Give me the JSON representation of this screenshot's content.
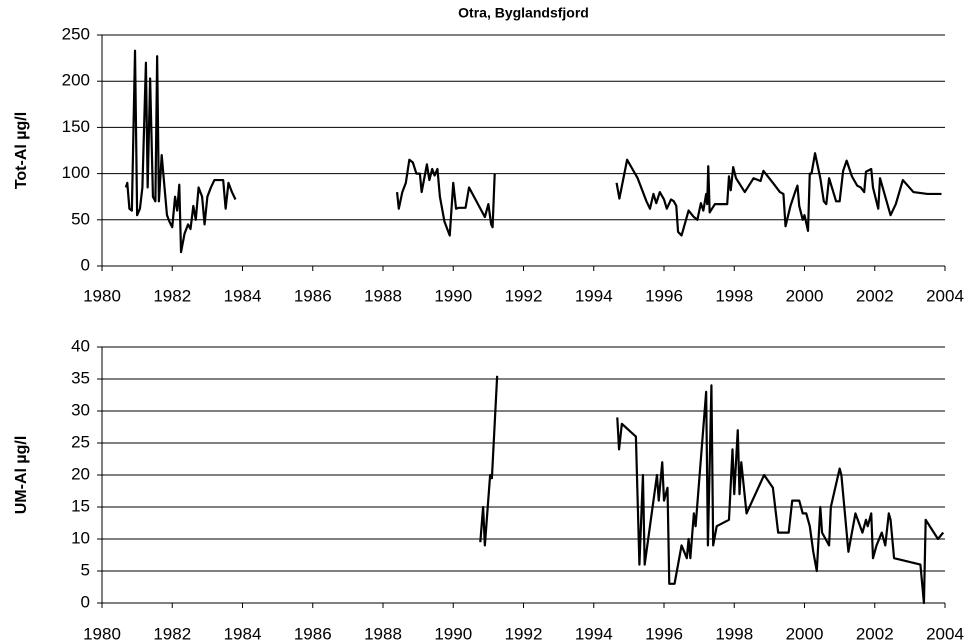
{
  "chart_data": [
    {
      "type": "line",
      "title": "Otra, Byglandsfjord",
      "y_label": "Tot-Al µg/l",
      "x": [
        1980.68,
        1980.72,
        1980.78,
        1980.85,
        1980.94,
        1981.0,
        1981.08,
        1981.15,
        1981.25,
        1981.3,
        1981.37,
        1981.45,
        1981.52,
        1981.57,
        1981.62,
        1981.7,
        1981.78,
        1981.85,
        1981.92,
        1982.0,
        1982.08,
        1982.14,
        1982.2,
        1982.25,
        1982.35,
        1982.45,
        1982.52,
        1982.6,
        1982.67,
        1982.75,
        1982.85,
        1982.92,
        1983.0,
        1983.1,
        1983.2,
        1983.35,
        1983.45,
        1983.52,
        1983.6,
        1983.7,
        1983.8,
        null,
        1988.4,
        1988.45,
        1988.55,
        1988.65,
        1988.75,
        1988.85,
        1988.95,
        1989.05,
        1989.1,
        1989.25,
        1989.32,
        1989.4,
        1989.47,
        1989.55,
        1989.62,
        1989.75,
        1989.9,
        1990.0,
        1990.08,
        1990.15,
        1990.35,
        1990.45,
        1990.9,
        1991.0,
        1991.08,
        1991.12,
        1991.18,
        null,
        1994.65,
        1994.73,
        1994.95,
        1995.25,
        1995.5,
        1995.6,
        1995.7,
        1995.78,
        1995.88,
        1996.0,
        1996.08,
        1996.2,
        1996.28,
        1996.35,
        1996.4,
        1996.5,
        1996.7,
        1996.85,
        1996.95,
        1997.05,
        1997.12,
        1997.2,
        1997.23,
        1997.26,
        1997.3,
        1997.45,
        1997.8,
        1997.85,
        1997.9,
        1997.97,
        1998.05,
        1998.3,
        1998.55,
        1998.75,
        1998.83,
        1999.1,
        1999.3,
        1999.4,
        1999.46,
        1999.6,
        1999.75,
        1999.8,
        1999.85,
        1999.95,
        2000.0,
        2000.1,
        2000.15,
        2000.2,
        2000.3,
        2000.45,
        2000.55,
        2000.62,
        2000.7,
        2000.9,
        2001.0,
        2001.1,
        2001.2,
        2001.35,
        2001.5,
        2001.6,
        2001.7,
        2001.75,
        2001.9,
        2001.95,
        2002.1,
        2002.15,
        2002.45,
        2002.6,
        2002.8,
        2003.1,
        2003.5,
        2003.9
      ],
      "values": [
        85,
        90,
        62,
        60,
        233,
        55,
        62,
        85,
        220,
        85,
        203,
        75,
        70,
        227,
        70,
        120,
        85,
        55,
        48,
        42,
        75,
        60,
        88,
        15,
        35,
        45,
        40,
        65,
        50,
        85,
        75,
        45,
        75,
        85,
        93,
        93,
        93,
        62,
        90,
        80,
        72,
        null,
        80,
        62,
        80,
        90,
        115,
        112,
        100,
        100,
        80,
        110,
        93,
        105,
        98,
        105,
        75,
        48,
        33,
        90,
        62,
        63,
        63,
        85,
        53,
        67,
        45,
        42,
        100,
        null,
        90,
        73,
        115,
        95,
        70,
        62,
        78,
        68,
        80,
        72,
        62,
        72,
        70,
        65,
        37,
        33,
        60,
        53,
        50,
        68,
        60,
        78,
        67,
        108,
        58,
        67,
        67,
        97,
        82,
        107,
        95,
        80,
        95,
        92,
        103,
        90,
        80,
        78,
        43,
        65,
        82,
        87,
        65,
        50,
        55,
        38,
        100,
        100,
        122,
        95,
        70,
        67,
        95,
        70,
        70,
        103,
        114,
        97,
        87,
        85,
        80,
        102,
        105,
        85,
        62,
        95,
        55,
        67,
        93,
        80,
        78,
        78
      ],
      "color": "#000000",
      "xlim": [
        1980,
        2004
      ],
      "xticks": [
        1980,
        1982,
        1984,
        1986,
        1988,
        1990,
        1992,
        1994,
        1996,
        1998,
        2000,
        2002,
        2004
      ],
      "ylim": [
        0,
        250
      ],
      "yticks": [
        0,
        50,
        100,
        150,
        200,
        250
      ],
      "grid": true
    },
    {
      "type": "line",
      "y_label": "UM-Al µg/l",
      "x": [
        1990.77,
        1990.85,
        1990.9,
        1991.05,
        1991.1,
        1991.25,
        null,
        1994.67,
        1994.72,
        1994.8,
        1995.0,
        1995.2,
        1995.3,
        1995.4,
        1995.45,
        1995.6,
        1995.8,
        1995.85,
        1995.95,
        1996.0,
        1996.1,
        1996.15,
        1996.3,
        1996.5,
        1996.65,
        1996.7,
        1996.75,
        1996.85,
        1996.9,
        1997.2,
        1997.25,
        1997.35,
        1997.4,
        1997.5,
        1997.85,
        1997.95,
        1998.0,
        1998.1,
        1998.15,
        1998.2,
        1998.35,
        1998.85,
        1999.1,
        1999.25,
        1999.55,
        1999.65,
        1999.85,
        1999.95,
        2000.05,
        2000.15,
        2000.25,
        2000.35,
        2000.45,
        2000.5,
        2000.7,
        2000.75,
        2001.0,
        2001.05,
        2001.25,
        2001.45,
        2001.65,
        2001.75,
        2001.8,
        2001.9,
        2001.95,
        2002.05,
        2002.2,
        2002.3,
        2002.4,
        2002.45,
        2002.55,
        2003.3,
        2003.4,
        2003.45,
        2003.8,
        2003.95
      ],
      "values": [
        9.5,
        15,
        9,
        20,
        19.5,
        35.5,
        null,
        29,
        24,
        28,
        27,
        26,
        6,
        20,
        6,
        12,
        20,
        16,
        22,
        16,
        18,
        3,
        3,
        9,
        7,
        10,
        7,
        14,
        12,
        33,
        9,
        34,
        9,
        12,
        13,
        24,
        17,
        27,
        17,
        22,
        14,
        20,
        18,
        11,
        11,
        16,
        16,
        14,
        14,
        12,
        8,
        5,
        15,
        11,
        9,
        15,
        21,
        20,
        8,
        14,
        11,
        13,
        12,
        14,
        7,
        9,
        11,
        9,
        14,
        13,
        7,
        6,
        0,
        13,
        10,
        11
      ],
      "color": "#000000",
      "xlim": [
        1980,
        2004
      ],
      "xticks": [
        1980,
        1982,
        1984,
        1986,
        1988,
        1990,
        1992,
        1994,
        1996,
        1998,
        2000,
        2002,
        2004
      ],
      "ylim": [
        0,
        40
      ],
      "yticks": [
        0,
        5,
        10,
        15,
        20,
        25,
        30,
        35,
        40
      ],
      "grid": true
    }
  ]
}
